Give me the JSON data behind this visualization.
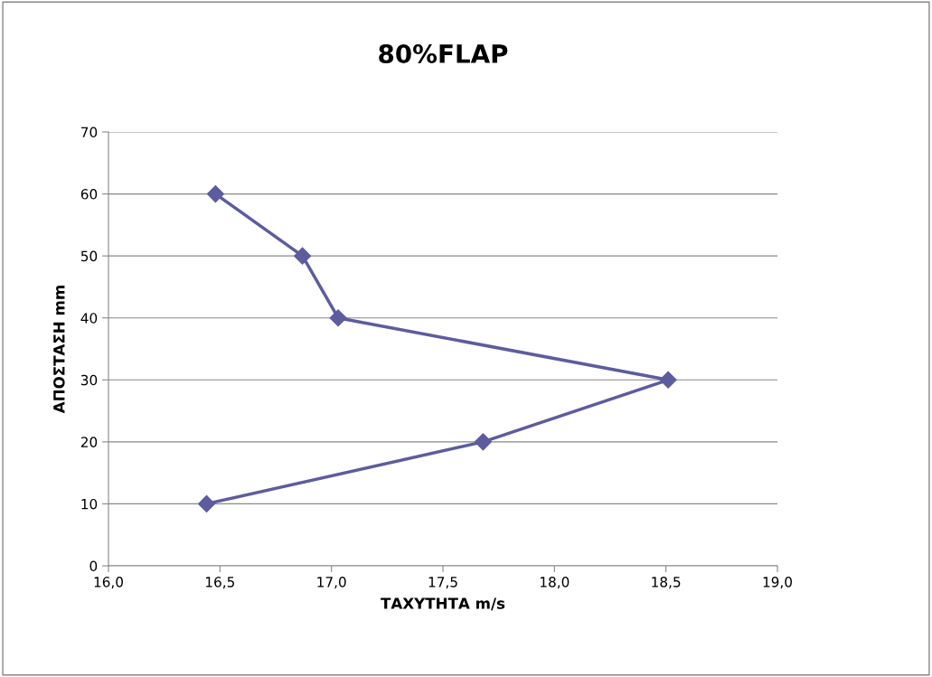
{
  "chart_data": {
    "type": "line",
    "title": "80%FLAP",
    "xlabel": "ΤΑΧΥΤΗΤΑ m/s",
    "ylabel": "ΑΠΟΣΤΑΣΗ mm",
    "series": [
      {
        "color": "#5c5c9e",
        "x": [
          16.44,
          17.68,
          18.51,
          17.03,
          16.87,
          16.48
        ],
        "values": [
          10,
          20,
          30,
          40,
          50,
          60
        ]
      }
    ],
    "xlim": [
      16,
      19
    ],
    "xticks": [
      {
        "value": 16,
        "label": "16,0"
      },
      {
        "value": 16.5,
        "label": "16,5"
      },
      {
        "value": 17,
        "label": "17,0"
      },
      {
        "value": 17.5,
        "label": "17,5"
      },
      {
        "value": 18,
        "label": "18,0"
      },
      {
        "value": 18.5,
        "label": "18,5"
      },
      {
        "value": 19,
        "label": "19,0"
      }
    ],
    "ylim": [
      0,
      70
    ],
    "yticks": [
      0,
      10,
      20,
      30,
      40,
      50,
      60,
      70
    ],
    "grid": "y",
    "marker": "diamond",
    "line_style": "solid"
  }
}
